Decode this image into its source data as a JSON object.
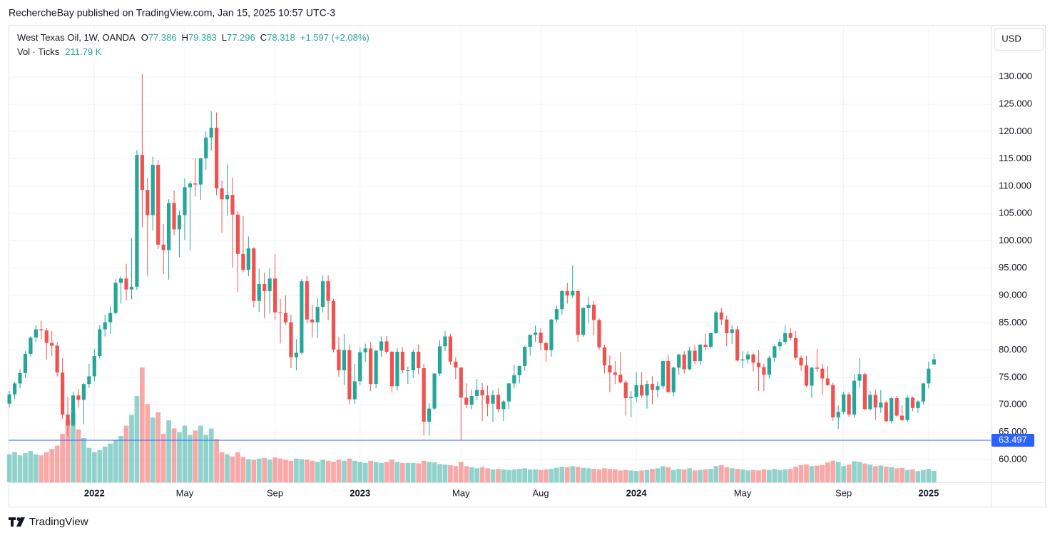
{
  "page": {
    "published": "RechercheBay published on TradingView.com, Jan 15, 2025 10:57 UTC-3",
    "currency": "USD",
    "footer": "TradingView"
  },
  "header": {
    "symbol": "West Texas Oil, 1W, OANDA",
    "o": "O",
    "h": "H",
    "l": "L",
    "c": "C",
    "change": "+1.597 (+2.08%)",
    "vol_label": "Vol · Ticks",
    "vol_value": "211.79 K"
  },
  "chart_data": {
    "type": "candlestick",
    "up_color": "#26a69a",
    "down_color": "#ef5350",
    "grid": true,
    "xlim": [
      -0.15,
      184.7
    ],
    "xticks": [
      {
        "value": 16,
        "label": "2022"
      },
      {
        "value": 33,
        "label": "May"
      },
      {
        "value": 50,
        "label": "Sep"
      },
      {
        "value": 66,
        "label": "2023"
      },
      {
        "value": 85,
        "label": "May"
      },
      {
        "value": 100,
        "label": "Aug"
      },
      {
        "value": 118,
        "label": "2024"
      },
      {
        "value": 138,
        "label": "May"
      },
      {
        "value": 157,
        "label": "Sep"
      },
      {
        "value": 173,
        "label": "2025"
      }
    ],
    "ylim": [
      55.8,
      139.5
    ],
    "yticks": [
      {
        "value": 60,
        "label": "60.000"
      },
      {
        "value": 65,
        "label": "65.000"
      },
      {
        "value": 70,
        "label": "70.000"
      },
      {
        "value": 75,
        "label": "75.000"
      },
      {
        "value": 80,
        "label": "80.000"
      },
      {
        "value": 85,
        "label": "85.000"
      },
      {
        "value": 90,
        "label": "90.000"
      },
      {
        "value": 95,
        "label": "95.000"
      },
      {
        "value": 100,
        "label": "100.000"
      },
      {
        "value": 105,
        "label": "105.000"
      },
      {
        "value": 110,
        "label": "110.000"
      },
      {
        "value": 115,
        "label": "115.000"
      },
      {
        "value": 120,
        "label": "120.000"
      },
      {
        "value": 125,
        "label": "125.000"
      },
      {
        "value": 130,
        "label": "130.000"
      }
    ],
    "price_line": {
      "value": 63.497,
      "color": "#2962ff"
    },
    "open": [
      70.2,
      71.9,
      73.9,
      75.8,
      79.3,
      82.3,
      83.8,
      83.6,
      81.3,
      80.8,
      75.9,
      68.2,
      66.2,
      71.7,
      70.9,
      73.8,
      75.2,
      78.9,
      83.8,
      85.1,
      86.8,
      92.3,
      93.1,
      91.1,
      91.6,
      115.7,
      109.3,
      104.7,
      113.9,
      99.3,
      98.3,
      106.9,
      102.1,
      104.7,
      109.8,
      110.5,
      110.3,
      115.1,
      118.9,
      120.7,
      109.6,
      107.6,
      108.4,
      104.8,
      97.6,
      94.7,
      98.6,
      89.0,
      92.1,
      90.8,
      93.1,
      86.9,
      86.8,
      85.1,
      78.7,
      79.5,
      92.6,
      85.6,
      85.1,
      87.9,
      92.6,
      89.0,
      80.1,
      76.3,
      80.0,
      71.0,
      74.3,
      79.6,
      80.3,
      73.8,
      79.9,
      81.6,
      79.7,
      73.4,
      79.7,
      76.3,
      76.3,
      79.7,
      76.7,
      66.9,
      69.3,
      75.7,
      80.7,
      82.5,
      77.9,
      76.8,
      71.3,
      70.0,
      71.6,
      72.7,
      71.7,
      70.2,
      71.8,
      69.2,
      70.6,
      73.9,
      75.4,
      77.1,
      80.6,
      82.8,
      83.2,
      81.3,
      80.0,
      85.6,
      87.5,
      90.8,
      90.0,
      90.8,
      82.8,
      87.7,
      88.3,
      85.5,
      80.5,
      77.2,
      75.9,
      75.5,
      74.1,
      71.2,
      71.4,
      73.6,
      71.7,
      73.8,
      72.7,
      73.4,
      78.0,
      72.3,
      76.8,
      79.2,
      76.5,
      79.9,
      78.0,
      81.0,
      80.6,
      83.1,
      86.9,
      85.6,
      83.1,
      83.8,
      78.1,
      78.3,
      79.2,
      77.7,
      76.9,
      75.5,
      78.6,
      80.7,
      81.5,
      83.1,
      82.2,
      78.6,
      77.2,
      73.5,
      76.8,
      76.6,
      74.8,
      73.6,
      67.7,
      68.7,
      71.9,
      68.2,
      74.4,
      75.6,
      69.2,
      71.8,
      69.5,
      70.4,
      67.0,
      71.2,
      68.0,
      67.2,
      71.3,
      69.4,
      70.6,
      73.9,
      77.386
    ],
    "high": [
      72.5,
      74.2,
      76.5,
      79.8,
      82.5,
      84.6,
      85.4,
      84.0,
      83.5,
      81.5,
      78.5,
      71.4,
      72.4,
      72.9,
      74.0,
      77.5,
      80.2,
      84.6,
      86.5,
      88.1,
      93.0,
      93.5,
      95.8,
      100.5,
      116.6,
      130.5,
      111.5,
      115.4,
      114.8,
      103.1,
      107.6,
      109.2,
      105.5,
      111.4,
      110.9,
      115.1,
      115.2,
      120.0,
      123.7,
      123.5,
      111.0,
      114.0,
      111.5,
      105.5,
      104.5,
      100.8,
      98.8,
      94.9,
      94.2,
      95.0,
      97.6,
      89.4,
      90.0,
      86.5,
      82.0,
      93.0,
      93.6,
      88.3,
      89.5,
      93.7,
      93.7,
      89.4,
      82.4,
      83.0,
      81.0,
      77.5,
      80.5,
      81.2,
      81.5,
      80.0,
      82.5,
      82.6,
      79.9,
      80.4,
      80.5,
      77.0,
      80.1,
      81.0,
      77.5,
      70.3,
      75.8,
      81.8,
      83.5,
      83.0,
      78.7,
      76.9,
      73.9,
      72.8,
      74.7,
      74.0,
      73.5,
      72.7,
      73.0,
      70.8,
      74.0,
      77.3,
      77.1,
      80.8,
      82.8,
      84.5,
      84.0,
      81.6,
      85.7,
      88.1,
      91.0,
      92.3,
      95.5,
      91.0,
      87.8,
      89.8,
      89.0,
      85.8,
      81.0,
      79.0,
      78.0,
      79.6,
      74.5,
      72.5,
      76.0,
      76.0,
      74.4,
      75.2,
      74.3,
      78.0,
      79.1,
      77.0,
      79.3,
      79.8,
      80.6,
      80.9,
      81.1,
      83.0,
      83.2,
      87.2,
      87.7,
      86.3,
      84.5,
      84.4,
      79.8,
      79.8,
      79.5,
      80.0,
      77.5,
      79.0,
      81.0,
      82.1,
      84.5,
      84.0,
      83.5,
      79.0,
      78.9,
      76.9,
      80.2,
      77.5,
      77.0,
      74.0,
      69.9,
      72.4,
      72.3,
      75.5,
      78.5,
      75.9,
      72.5,
      72.8,
      72.7,
      70.7,
      71.4,
      71.6,
      69.9,
      71.8,
      71.5,
      70.8,
      74.0,
      77.9,
      79.383
    ],
    "low": [
      69.5,
      71.0,
      73.0,
      74.9,
      78.8,
      81.5,
      82.0,
      78.3,
      78.9,
      75.2,
      67.4,
      64.3,
      65.9,
      69.5,
      66.4,
      73.1,
      74.3,
      78.5,
      82.5,
      83.0,
      86.5,
      88.5,
      89.1,
      89.3,
      91.0,
      102.5,
      93.5,
      101.9,
      98.5,
      93.9,
      92.9,
      101.0,
      97.0,
      100.2,
      98.2,
      108.1,
      107.5,
      113.0,
      116.5,
      108.3,
      101.5,
      104.6,
      95.1,
      90.6,
      94.2,
      93.5,
      87.8,
      87.0,
      85.9,
      86.7,
      85.5,
      81.2,
      84.6,
      76.7,
      76.3,
      79.2,
      84.9,
      82.3,
      82.2,
      86.9,
      85.5,
      79.6,
      75.1,
      73.6,
      70.1,
      70.2,
      73.6,
      77.8,
      72.5,
      73.0,
      78.8,
      79.3,
      72.2,
      72.6,
      75.8,
      73.8,
      74.9,
      75.6,
      64.4,
      64.4,
      69.0,
      75.3,
      79.8,
      77.3,
      74.7,
      63.6,
      69.4,
      69.2,
      70.8,
      67.0,
      67.9,
      66.9,
      68.6,
      67.0,
      69.2,
      73.0,
      73.9,
      76.2,
      79.0,
      81.5,
      79.9,
      77.8,
      78.8,
      85.0,
      86.5,
      88.5,
      89.5,
      81.5,
      82.4,
      85.0,
      82.7,
      80.1,
      75.7,
      72.3,
      73.8,
      73.9,
      68.0,
      67.7,
      70.5,
      71.3,
      69.3,
      70.1,
      71.3,
      72.9,
      72.3,
      71.5,
      75.5,
      75.7,
      76.3,
      77.4,
      77.3,
      80.0,
      80.3,
      83.0,
      84.6,
      80.7,
      81.1,
      77.9,
      76.7,
      77.5,
      76.1,
      72.5,
      72.5,
      74.8,
      77.8,
      79.9,
      81.0,
      81.7,
      78.2,
      76.2,
      73.3,
      71.2,
      76.0,
      71.8,
      73.4,
      67.1,
      65.6,
      68.3,
      67.8,
      67.6,
      73.1,
      69.0,
      68.9,
      67.2,
      68.5,
      66.8,
      66.6,
      67.8,
      67.0,
      66.9,
      68.8,
      68.5,
      70.1,
      73.0,
      77.296
    ],
    "close": [
      71.9,
      73.9,
      75.8,
      79.3,
      82.3,
      83.8,
      83.6,
      81.3,
      80.8,
      75.9,
      68.2,
      66.2,
      71.7,
      70.9,
      73.8,
      75.2,
      78.9,
      83.8,
      85.1,
      86.8,
      92.3,
      93.1,
      91.1,
      91.6,
      115.7,
      109.3,
      104.7,
      113.9,
      99.3,
      98.3,
      106.9,
      102.1,
      104.7,
      109.8,
      110.5,
      110.3,
      115.1,
      118.9,
      120.7,
      109.6,
      107.6,
      108.4,
      104.8,
      97.6,
      94.7,
      98.6,
      89.0,
      92.1,
      90.8,
      93.1,
      86.9,
      86.8,
      85.1,
      78.7,
      79.5,
      92.6,
      85.6,
      85.1,
      87.9,
      92.6,
      89.0,
      80.1,
      76.3,
      80.0,
      71.0,
      74.3,
      79.6,
      80.3,
      73.8,
      79.9,
      81.6,
      79.7,
      73.4,
      79.7,
      76.3,
      76.3,
      79.7,
      76.7,
      66.9,
      69.3,
      75.7,
      80.7,
      82.5,
      77.9,
      76.8,
      71.3,
      70.0,
      71.6,
      72.7,
      71.7,
      70.2,
      71.8,
      69.2,
      70.6,
      73.9,
      75.4,
      77.1,
      80.6,
      82.8,
      83.2,
      81.3,
      80.0,
      85.6,
      87.5,
      90.8,
      90.0,
      90.8,
      82.8,
      87.7,
      88.3,
      85.5,
      80.5,
      77.2,
      75.9,
      75.5,
      74.1,
      71.2,
      71.4,
      73.6,
      71.7,
      73.8,
      72.7,
      73.4,
      78.0,
      72.3,
      76.8,
      79.2,
      76.5,
      79.9,
      78.0,
      81.0,
      80.6,
      83.1,
      86.9,
      85.6,
      83.1,
      83.8,
      78.1,
      78.3,
      79.2,
      77.7,
      76.9,
      75.5,
      78.6,
      80.7,
      81.5,
      83.1,
      82.2,
      78.6,
      77.2,
      73.5,
      76.8,
      76.6,
      74.8,
      73.6,
      67.7,
      68.7,
      71.9,
      68.2,
      74.4,
      75.6,
      69.2,
      71.8,
      69.5,
      70.4,
      67.0,
      71.2,
      68.0,
      67.2,
      71.3,
      69.4,
      70.6,
      73.9,
      76.6,
      78.318
    ],
    "volume": [
      520,
      560,
      500,
      540,
      580,
      520,
      500,
      560,
      620,
      680,
      900,
      1150,
      1300,
      980,
      820,
      640,
      560,
      600,
      660,
      720,
      780,
      860,
      1050,
      1250,
      1600,
      2130,
      1450,
      1200,
      1300,
      900,
      1150,
      1000,
      930,
      1050,
      880,
      960,
      1050,
      880,
      1000,
      800,
      560,
      520,
      480,
      560,
      470,
      430,
      420,
      440,
      450,
      420,
      460,
      440,
      420,
      400,
      440,
      430,
      420,
      400,
      380,
      420,
      400,
      380,
      420,
      400,
      440,
      400,
      380,
      360,
      400,
      380,
      360,
      380,
      420,
      380,
      360,
      360,
      360,
      350,
      400,
      380,
      370,
      340,
      330,
      320,
      300,
      380,
      300,
      280,
      260,
      280,
      260,
      240,
      250,
      240,
      230,
      240,
      250,
      260,
      240,
      240,
      230,
      240,
      250,
      270,
      290,
      280,
      300,
      290,
      270,
      260,
      250,
      240,
      260,
      250,
      240,
      220,
      230,
      220,
      210,
      220,
      230,
      250,
      260,
      300,
      280,
      230,
      250,
      240,
      260,
      220,
      230,
      240,
      250,
      300,
      320,
      280,
      260,
      250,
      240,
      220,
      230,
      220,
      240,
      230,
      250,
      230,
      240,
      250,
      290,
      320,
      330,
      300,
      310,
      320,
      370,
      400,
      380,
      300,
      330,
      390,
      380,
      350,
      330,
      300,
      310,
      290,
      280,
      260,
      270,
      230,
      240,
      210,
      230,
      250,
      211.79
    ]
  }
}
